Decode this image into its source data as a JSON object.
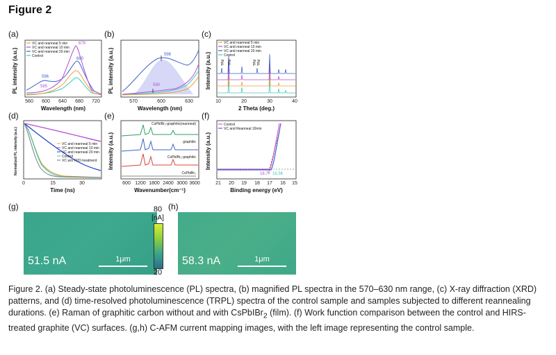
{
  "figure_title": "Figure 2",
  "panels": {
    "a": {
      "label": "(a)",
      "ylabel": "PL intensity (a.u.)",
      "xlabel": "Wavelength (nm)",
      "xticks": [
        "560",
        "600",
        "640",
        "680",
        "720"
      ],
      "legend": [
        "VC and reanneal 5 min",
        "VC and reanneal 10 min",
        "VC and reanneal 20 min",
        "Control"
      ],
      "annotations": [
        "679",
        "680",
        "596",
        "585"
      ]
    },
    "b": {
      "label": "(b)",
      "ylabel": "PL intensity (a.u.)",
      "xlabel": "Wavelength (nm)",
      "xticks": [
        "570",
        "600",
        "630"
      ],
      "annotations": [
        "598",
        "590"
      ]
    },
    "c": {
      "label": "(c)",
      "ylabel": "Intensity (a.u.)",
      "xlabel": "2 Theta (deg.)",
      "xticks": [
        "10",
        "20",
        "30",
        "40"
      ],
      "legend": [
        "VC and reanneal 5 min",
        "VC and reanneal 10 min",
        "VC and reanneal 20 min",
        "Control"
      ],
      "peak_labels": [
        "*PbI",
        "*PbI",
        "*PbI",
        "*PbI"
      ]
    },
    "d": {
      "label": "(d)",
      "ylabel": "Normalized PL intensity (a.u.)",
      "xlabel": "Time (ns)",
      "xticks": [
        "0",
        "15",
        "30"
      ],
      "legend": [
        "VC and reanneal 5 min",
        "VC and reanneal 10 min",
        "VC and reanneal 20 min",
        "Control",
        "VC w/o H2O treatment"
      ]
    },
    "e": {
      "label": "(e)",
      "ylabel": "Intensity (a.u.)",
      "xlabel": "Wavenumber(cm⁻¹)",
      "xticks": [
        "600",
        "1200",
        "1800",
        "2400",
        "3000",
        "3600"
      ],
      "traces": [
        "CsPbIBr₂-graphitic(reanneal)",
        "graphitic",
        "CsPbIBr₂-graphitic",
        "CsPbIBr₂"
      ]
    },
    "f": {
      "label": "(f)",
      "ylabel": "Intensity (a.u.)",
      "xlabel": "Binding energy (eV)",
      "xticks": [
        "21",
        "20",
        "19",
        "18",
        "17",
        "16",
        "15"
      ],
      "legend": [
        "Control",
        "VC and Reanneal 10min"
      ],
      "annotations": [
        "16.77",
        "16.56"
      ]
    },
    "g": {
      "label": "(g)",
      "value": "51.5 nA",
      "scale": "1μm"
    },
    "h": {
      "label": "(h)",
      "value": "58.3 nA",
      "scale": "1μm"
    },
    "colorbar": {
      "max": "80",
      "unit": "[nA]",
      "min": "20"
    }
  },
  "colors": {
    "orange": "#e8a23a",
    "purple": "#b24fd8",
    "blue": "#3f63c9",
    "teal": "#3ec9b9",
    "red": "#d8443f",
    "green": "#2f9e64",
    "cafm": "#3aa58c"
  },
  "caption": {
    "part1": "Figure 2. (a) Steady-state photoluminescence (PL) spectra, (b) magnified PL spectra in the 570–630 nm range, (c) X-ray diffraction (XRD) patterns, and (d) time-resolved photoluminescence (TRPL) spectra of the control sample and samples subjected to different reannealing durations. (e) Raman of graphitic carbon without and with CsPbIBr",
    "sub": "2",
    "part2": " (film). (f) Work function comparison between the control and HIRS-treated graphite (VC) surfaces. (g,h) C-AFM current mapping images, with the left image representing the control sample."
  }
}
